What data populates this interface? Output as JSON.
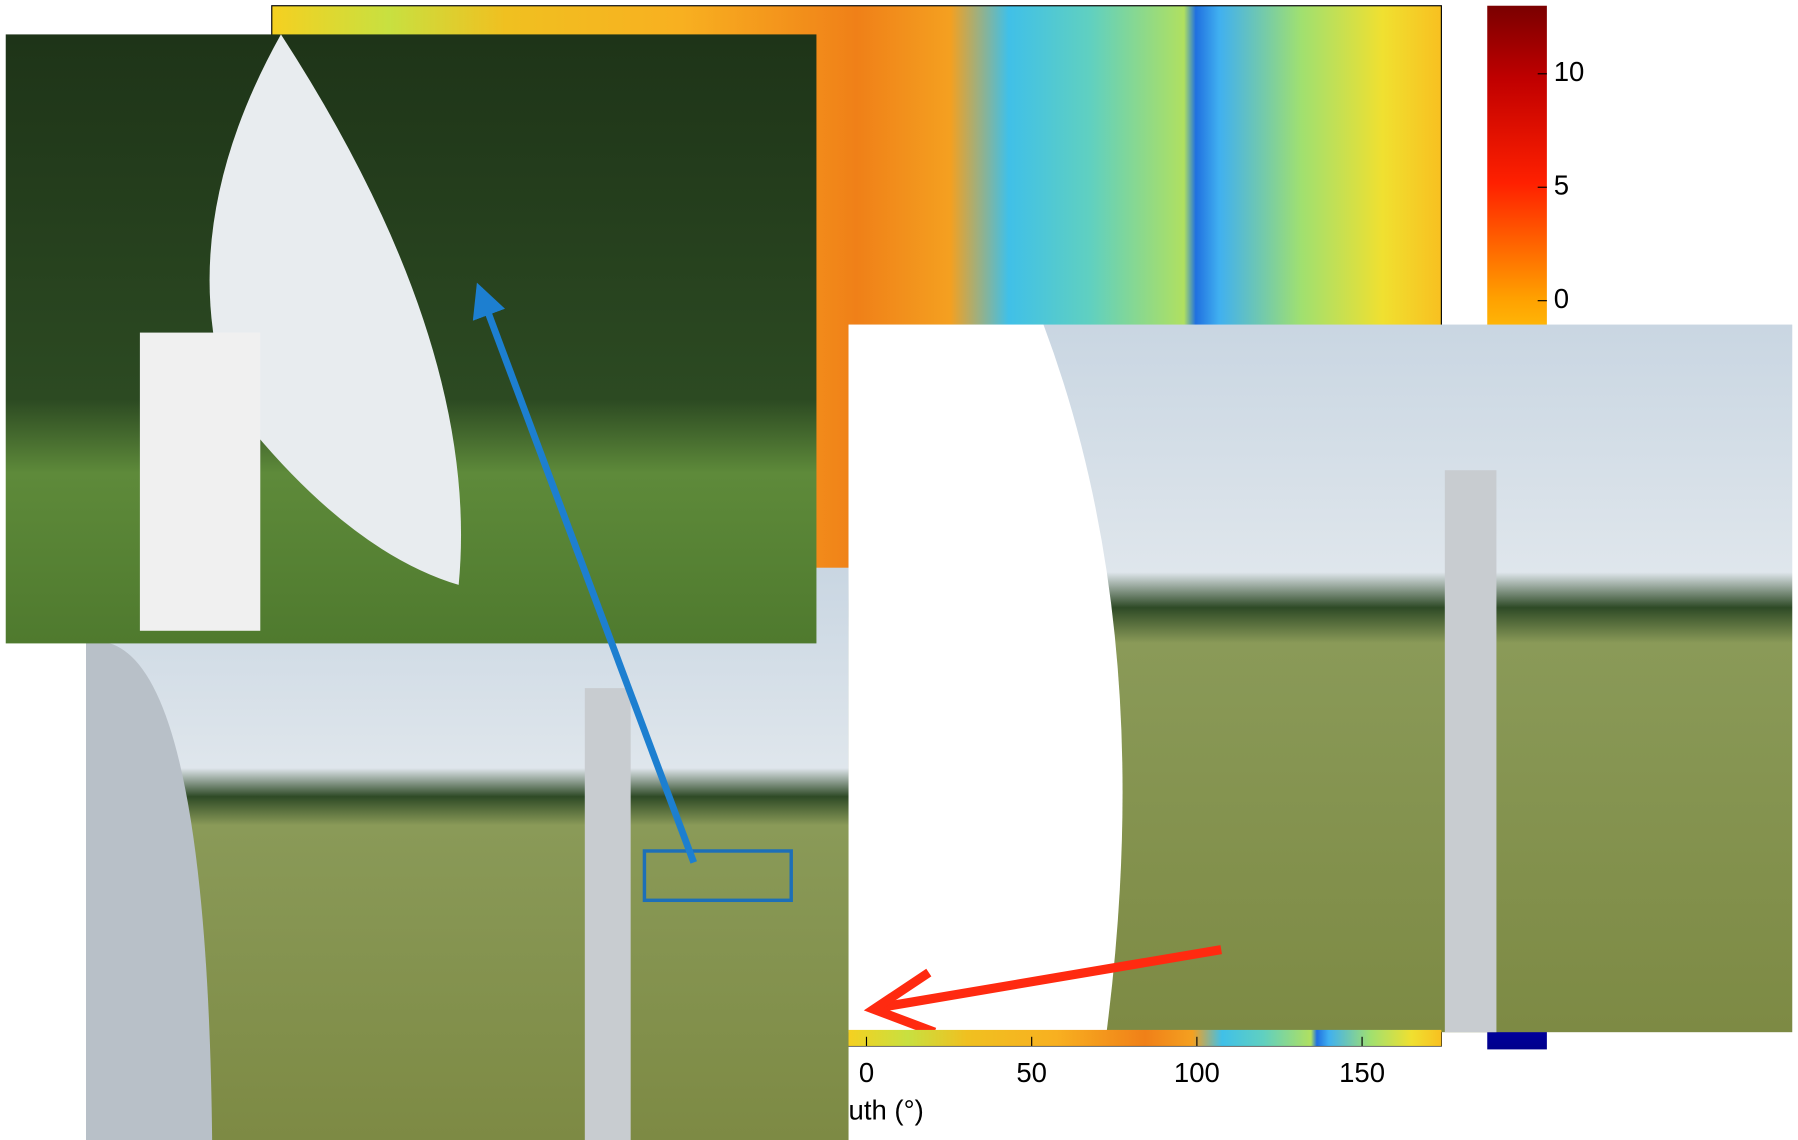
{
  "heatmap": {
    "xlim": [
      -180,
      174
    ],
    "xticks": [
      0,
      50,
      100,
      150
    ],
    "xlabel": "uth (°)",
    "colorbar": {
      "ylim": [
        -33,
        13
      ],
      "ticks": [
        0,
        5,
        10
      ]
    }
  }
}
